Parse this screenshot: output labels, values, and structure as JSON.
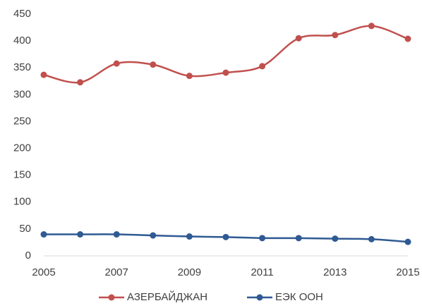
{
  "chart_data": {
    "type": "line",
    "x": [
      2005,
      2006,
      2007,
      2008,
      2009,
      2010,
      2011,
      2012,
      2013,
      2014,
      2015
    ],
    "series": [
      {
        "name": "АЗЕРБАЙДЖАН",
        "color": "#c0504d",
        "values": [
          337,
          323,
          358,
          356,
          335,
          341,
          353,
          405,
          411,
          428,
          404
        ]
      },
      {
        "name": "ЕЭК ООН",
        "color": "#2f5a93",
        "values": [
          40,
          40,
          40,
          38,
          36,
          35,
          33,
          33,
          32,
          31,
          26
        ]
      }
    ],
    "xlim": [
      2005,
      2015
    ],
    "xticks": [
      2005,
      2007,
      2009,
      2011,
      2013,
      2015
    ],
    "ylim": [
      0,
      450
    ],
    "yticks": [
      0,
      50,
      100,
      150,
      200,
      250,
      300,
      350,
      400,
      450
    ],
    "grid": false,
    "smooth": true,
    "legend": "bottom"
  }
}
